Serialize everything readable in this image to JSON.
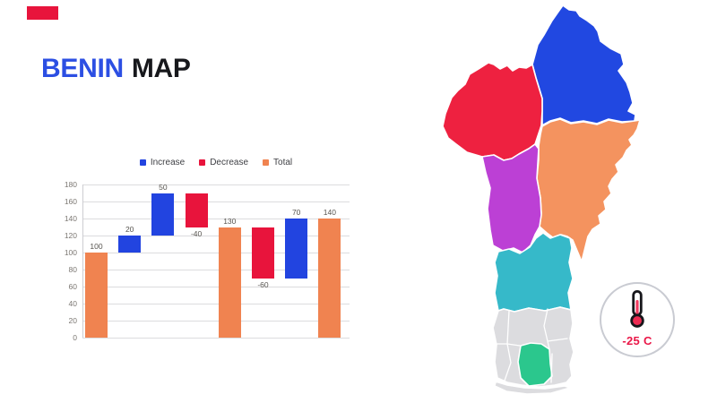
{
  "title": {
    "word1": "BENIN",
    "word2": "MAP"
  },
  "palette": {
    "title_blue": "#2c4fe3",
    "title_dark": "#17181c",
    "corner_accent_red": "#e8143c",
    "badge_text_red": "#ea1748",
    "badge_circle_border": "#c9cbd2"
  },
  "chart_data": {
    "type": "bar",
    "subtype": "waterfall",
    "title": "",
    "xlabel": "",
    "ylabel": "",
    "ylim": [
      0,
      180
    ],
    "y_ticks": [
      0,
      20,
      40,
      60,
      80,
      100,
      120,
      140,
      160,
      180
    ],
    "grid": true,
    "legend_position": "top",
    "legend": [
      {
        "label": "Increase",
        "kind": "increase"
      },
      {
        "label": "Decrease",
        "kind": "decrease"
      },
      {
        "label": "Total",
        "kind": "total"
      }
    ],
    "colors": {
      "increase": "#2244e0",
      "decrease": "#e8143c",
      "total": "#f08350"
    },
    "bars": [
      {
        "value_label": "100",
        "start": 0,
        "end": 100,
        "kind": "total"
      },
      {
        "value_label": "20",
        "start": 100,
        "end": 120,
        "kind": "increase"
      },
      {
        "value_label": "50",
        "start": 120,
        "end": 170,
        "kind": "increase"
      },
      {
        "value_label": "-40",
        "start": 170,
        "end": 130,
        "kind": "decrease"
      },
      {
        "value_label": "130",
        "start": 0,
        "end": 130,
        "kind": "total"
      },
      {
        "value_label": "-60",
        "start": 130,
        "end": 70,
        "kind": "decrease"
      },
      {
        "value_label": "70",
        "start": 70,
        "end": 140,
        "kind": "increase"
      },
      {
        "value_label": "140",
        "start": 0,
        "end": 140,
        "kind": "total"
      }
    ]
  },
  "map": {
    "name": "Benin departments map",
    "regions": [
      {
        "name": "alibori",
        "color": "#2148e1"
      },
      {
        "name": "atacora",
        "color": "#ee2140"
      },
      {
        "name": "borgou",
        "color": "#f4935f"
      },
      {
        "name": "donga",
        "color": "#bc40d5"
      },
      {
        "name": "collines",
        "color": "#36b9c9"
      },
      {
        "name": "southern-departments",
        "color": "#dcdcdf"
      },
      {
        "name": "littoral-strip",
        "color": "#dcdcdf"
      },
      {
        "name": "atlantique",
        "color": "#2bc78d"
      }
    ]
  },
  "badge": {
    "temperature": "-25 C"
  }
}
